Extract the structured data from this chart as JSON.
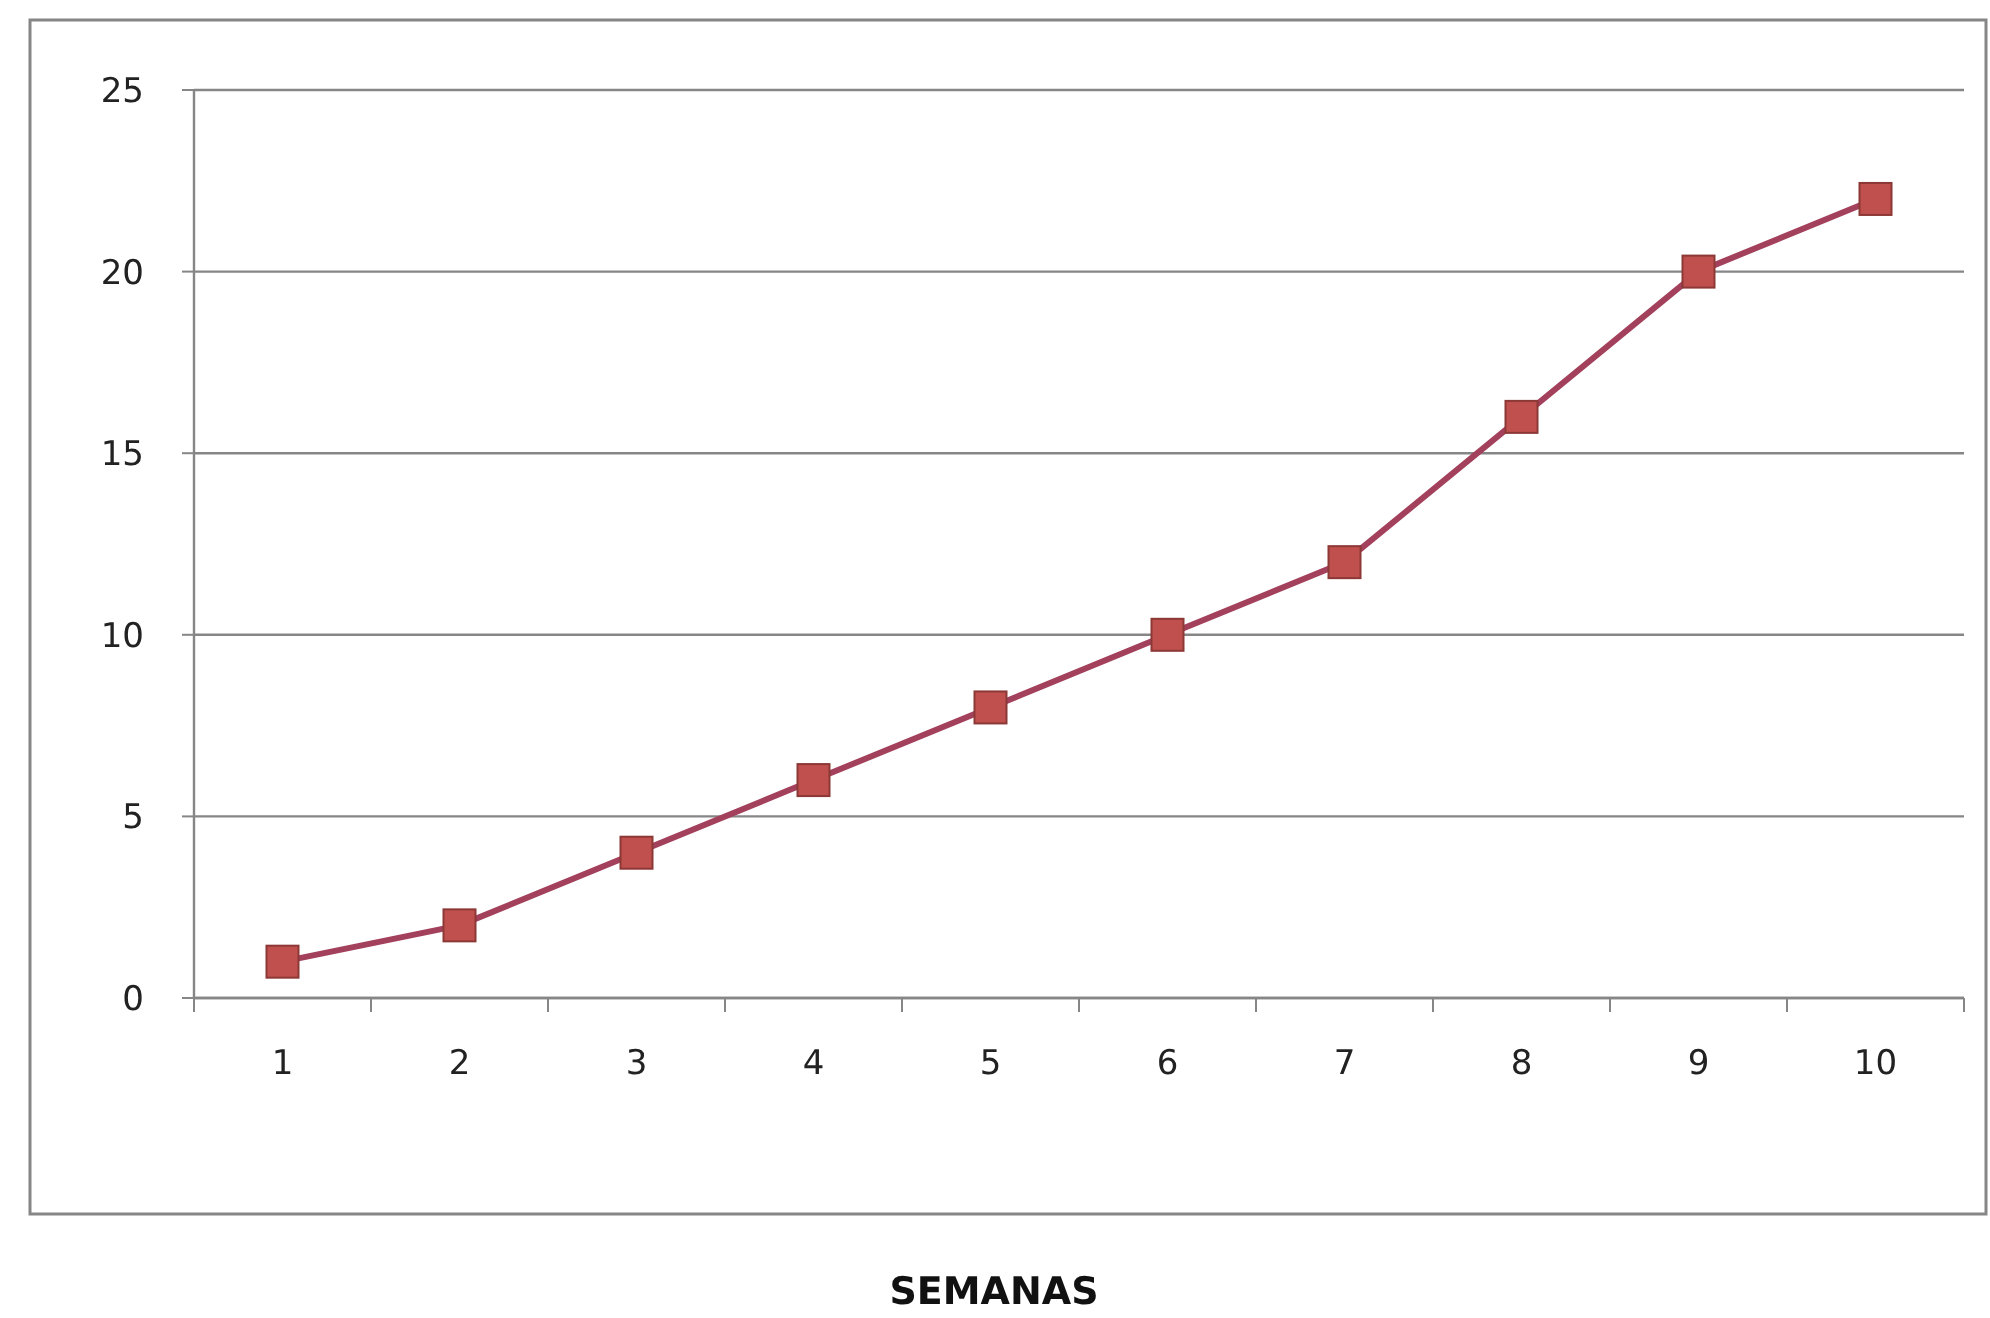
{
  "chart_data": {
    "type": "line",
    "xlabel": "SEMANAS",
    "categories": [
      "1",
      "2",
      "3",
      "4",
      "5",
      "6",
      "7",
      "8",
      "9",
      "10"
    ],
    "series": [
      {
        "color": "#a3405c",
        "values": [
          1,
          2,
          4,
          6,
          8,
          10,
          12,
          16,
          20,
          22
        ]
      }
    ],
    "ylim": [
      0,
      25
    ],
    "yticks": [
      0,
      5,
      10,
      15,
      20,
      25
    ],
    "grid": "y",
    "marker": "square",
    "line_style": "solid"
  }
}
